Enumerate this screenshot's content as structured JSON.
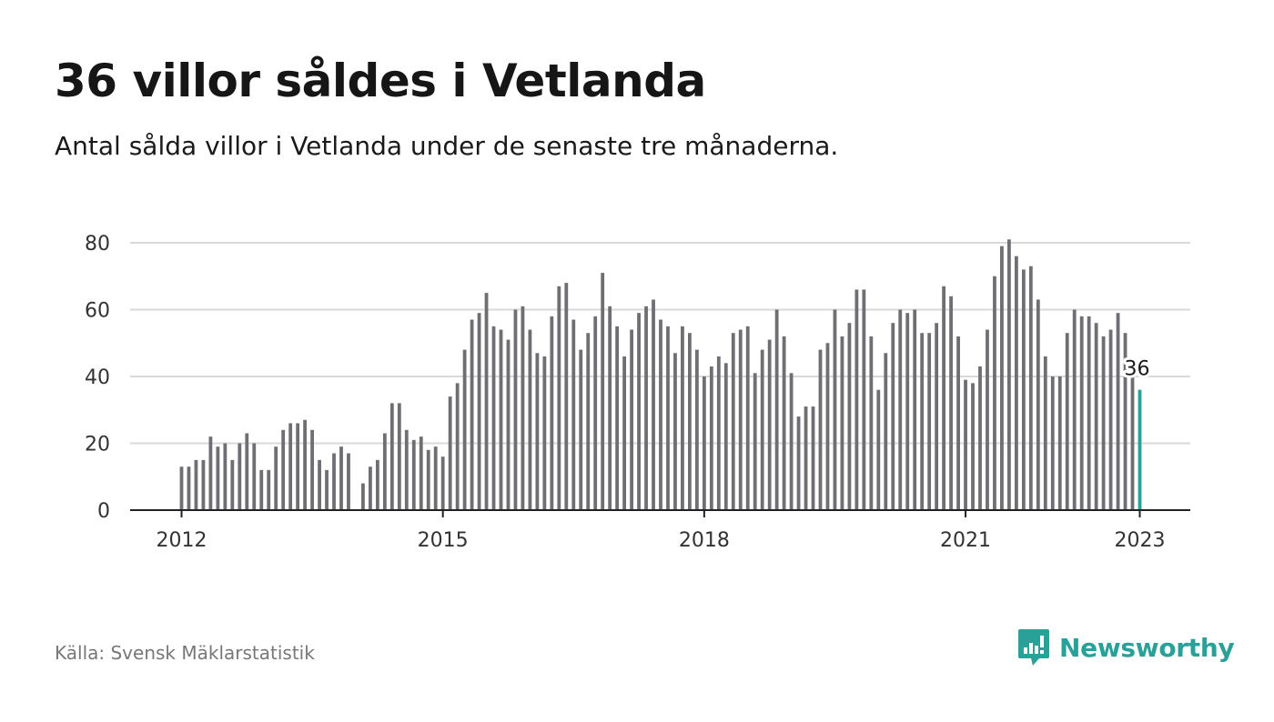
{
  "header": {
    "title": "36 villor såldes i Vetlanda",
    "subtitle": "Antal sålda villor i Vetlanda under de senaste tre månaderna."
  },
  "footer": {
    "source": "Källa: Svensk Mäklarstatistik",
    "brand": "Newsworthy",
    "brand_icon": "bar-chart-speech-bubble-icon"
  },
  "colors": {
    "bar": "#6e6e73",
    "highlight": "#2aa198",
    "grid": "#d9d9d9",
    "axis": "#222222"
  },
  "chart_data": {
    "type": "bar",
    "x_start": "2012-01",
    "x_end": "2023-01",
    "ylim": [
      0,
      80
    ],
    "yticks": [
      0,
      20,
      40,
      60,
      80
    ],
    "xticks": [
      "2012",
      "2015",
      "2018",
      "2021",
      "2023"
    ],
    "grid": true,
    "highlight_last": true,
    "annotation": "36",
    "values": [
      13,
      13,
      15,
      15,
      22,
      19,
      20,
      15,
      20,
      23,
      20,
      12,
      12,
      19,
      24,
      26,
      26,
      27,
      24,
      15,
      12,
      17,
      19,
      17,
      0,
      8,
      13,
      15,
      23,
      32,
      32,
      24,
      21,
      22,
      18,
      19,
      16,
      34,
      38,
      48,
      57,
      59,
      65,
      55,
      54,
      51,
      60,
      61,
      54,
      47,
      46,
      58,
      67,
      68,
      57,
      48,
      53,
      58,
      71,
      61,
      55,
      46,
      54,
      59,
      61,
      63,
      57,
      55,
      47,
      55,
      53,
      48,
      40,
      43,
      46,
      44,
      53,
      54,
      55,
      41,
      48,
      51,
      60,
      52,
      41,
      28,
      31,
      31,
      48,
      50,
      60,
      52,
      56,
      66,
      66,
      52,
      36,
      47,
      56,
      60,
      59,
      60,
      53,
      53,
      56,
      67,
      64,
      52,
      39,
      38,
      43,
      54,
      70,
      79,
      81,
      76,
      72,
      73,
      63,
      46,
      40,
      40,
      53,
      60,
      58,
      58,
      56,
      52,
      54,
      59,
      53,
      40,
      36
    ]
  }
}
